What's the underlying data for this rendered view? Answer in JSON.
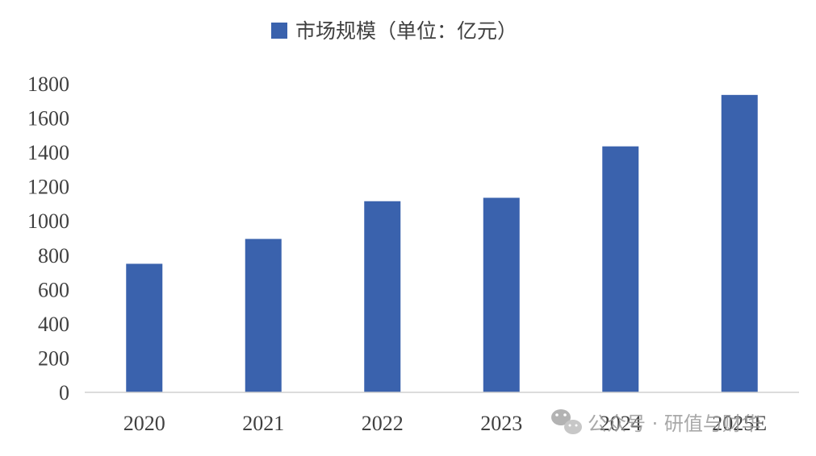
{
  "chart_data": {
    "type": "bar",
    "categories": [
      "2020",
      "2021",
      "2022",
      "2023",
      "2024",
      "2025E"
    ],
    "series": [
      {
        "name": "市场规模（单位：亿元）",
        "values": [
          750,
          895,
          1115,
          1135,
          1435,
          1735
        ],
        "color": "#3a62ad"
      }
    ],
    "ylim": [
      0,
      1800
    ],
    "yticks": [
      0,
      200,
      400,
      600,
      800,
      1000,
      1200,
      1400,
      1600,
      1800
    ],
    "legend_position": "top-center",
    "grid": false
  },
  "watermark": {
    "text": "公众号 · 研值与财华",
    "icon": "wechat-icon"
  }
}
